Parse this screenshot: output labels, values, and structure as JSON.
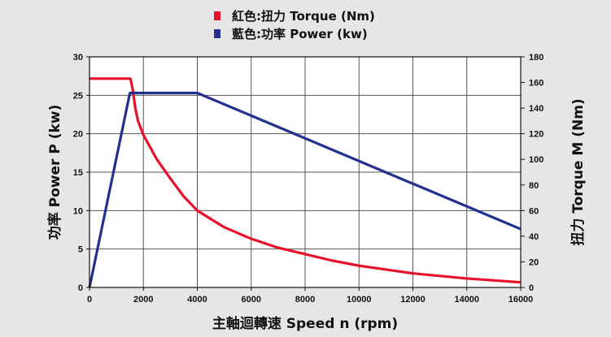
{
  "legend": {
    "torque_label": "紅色:扭力  Torque (Nm)",
    "power_label": "藍色:功率  Power (kw)"
  },
  "colors": {
    "torque": "#e8102a",
    "power": "#23308e",
    "grid": "#555555",
    "background": "#e6e6e6",
    "plot_background": "#ffffff"
  },
  "chart_data": {
    "type": "line",
    "xlabel": "主軸迴轉速 Speed n (rpm)",
    "ylabel_left": "功率 Power P (kw)",
    "ylabel_right": "扭力 Torque M (Nm)",
    "xlim": [
      0,
      16000
    ],
    "ylim_left": [
      0,
      30
    ],
    "ylim_right": [
      0,
      180
    ],
    "x_ticks": [
      "0",
      "2000",
      "4000",
      "6000",
      "8000",
      "10000",
      "12000",
      "14000",
      "16000"
    ],
    "y_left_ticks": [
      "0",
      "5",
      "10",
      "15",
      "20",
      "25",
      "30"
    ],
    "y_right_ticks": [
      "0",
      "20",
      "40",
      "60",
      "80",
      "100",
      "120",
      "140",
      "160",
      "180"
    ],
    "grid": true,
    "legend_position": "top-center",
    "series": [
      {
        "name": "紅色:扭力  Torque (Nm)",
        "axis": "right",
        "color": "#e8102a",
        "points": [
          [
            0,
            163
          ],
          [
            1520,
            163
          ],
          [
            1600,
            155
          ],
          [
            1700,
            140
          ],
          [
            1800,
            130
          ],
          [
            2000,
            119
          ],
          [
            2500,
            100
          ],
          [
            3000,
            85
          ],
          [
            3500,
            71
          ],
          [
            4000,
            60
          ],
          [
            5000,
            47
          ],
          [
            6000,
            38
          ],
          [
            7000,
            31
          ],
          [
            8000,
            26
          ],
          [
            9000,
            21
          ],
          [
            10000,
            17
          ],
          [
            11000,
            14
          ],
          [
            12000,
            11
          ],
          [
            13000,
            9
          ],
          [
            14000,
            7
          ],
          [
            15000,
            5.5
          ],
          [
            16000,
            4
          ]
        ]
      },
      {
        "name": "藍色:功率  Power (kw)",
        "axis": "left",
        "color": "#23308e",
        "points": [
          [
            0,
            0
          ],
          [
            1500,
            25.3
          ],
          [
            4000,
            25.3
          ],
          [
            16000,
            7.6
          ]
        ]
      }
    ]
  }
}
